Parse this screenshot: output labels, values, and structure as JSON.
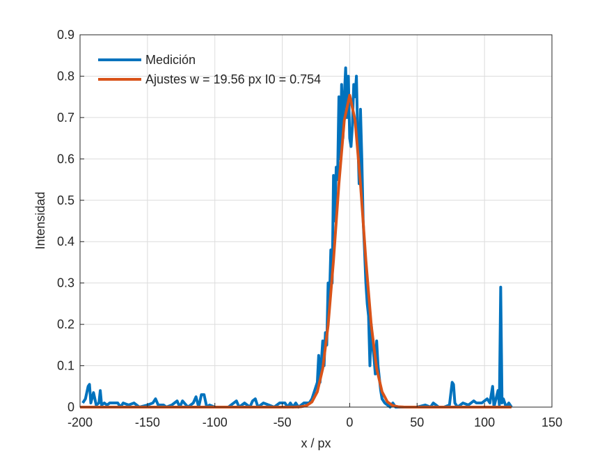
{
  "chart_data": {
    "type": "line",
    "xlabel": "x / px",
    "ylabel": "Intensidad",
    "xlim": [
      -200,
      150
    ],
    "xticks": [
      -200,
      -150,
      -100,
      -50,
      0,
      50,
      100,
      150
    ],
    "ylim": [
      0,
      0.9
    ],
    "yticks": [
      0,
      0.1,
      0.2,
      0.3,
      0.4,
      0.5,
      0.6,
      0.7,
      0.8,
      0.9
    ],
    "grid": true,
    "legend": "northwest",
    "series": [
      {
        "name": "Medición",
        "color": "#0072BD",
        "x": [
          -198,
          -196,
          -194,
          -193,
          -192,
          -190,
          -188,
          -186,
          -185,
          -184,
          -182,
          -180,
          -178,
          -176,
          -172,
          -170,
          -168,
          -164,
          -160,
          -156,
          -150,
          -146,
          -144,
          -142,
          -138,
          -136,
          -132,
          -128,
          -126,
          -124,
          -120,
          -116,
          -114,
          -112,
          -110,
          -108,
          -106,
          -104,
          -100,
          -90,
          -86,
          -84,
          -82,
          -78,
          -74,
          -72,
          -70,
          -68,
          -64,
          -60,
          -56,
          -52,
          -48,
          -46,
          -44,
          -42,
          -40,
          -38,
          -36,
          -34,
          -30,
          -28,
          -26,
          -24,
          -23,
          -22,
          -20,
          -19,
          -18,
          -17,
          -16,
          -15,
          -14,
          -13,
          -12,
          -11,
          -10,
          -9,
          -8,
          -7,
          -6,
          -5,
          -4,
          -3,
          -2,
          -1,
          0,
          1,
          2,
          3,
          4,
          5,
          6,
          7,
          8,
          9,
          10,
          11,
          12,
          13,
          14,
          15,
          16,
          17,
          18,
          19,
          20,
          21,
          22,
          23,
          24,
          26,
          28,
          30,
          32,
          34,
          40,
          50,
          56,
          60,
          62,
          66,
          70,
          74,
          76,
          77,
          78,
          80,
          84,
          88,
          92,
          94,
          98,
          102,
          104,
          106,
          107,
          110,
          111,
          112,
          113,
          114,
          116,
          118,
          120
        ],
        "values": [
          0.01,
          0.02,
          0.05,
          0.055,
          0.01,
          0.035,
          0.005,
          0.01,
          0.04,
          0.005,
          0.01,
          0.005,
          0.01,
          0.01,
          0.01,
          0,
          0.01,
          0.005,
          0.01,
          0,
          0.005,
          0.01,
          0.02,
          0.005,
          0.005,
          0,
          0.005,
          0.015,
          0,
          0.015,
          0,
          0.01,
          0.025,
          0,
          0.03,
          0.03,
          0,
          0.005,
          0,
          0,
          0.01,
          0.015,
          0,
          0.01,
          0,
          0.015,
          0.02,
          0,
          0.01,
          0.005,
          0,
          0.01,
          0.01,
          0,
          0.01,
          0,
          0.01,
          0,
          0.005,
          0.01,
          0.01,
          0.02,
          0.04,
          0.06,
          0.125,
          0.06,
          0.16,
          0.1,
          0.18,
          0.15,
          0.3,
          0.26,
          0.38,
          0.3,
          0.56,
          0.45,
          0.58,
          0.55,
          0.75,
          0.6,
          0.78,
          0.65,
          0.75,
          0.82,
          0.7,
          0.8,
          0.65,
          0.63,
          0.68,
          0.78,
          0.75,
          0.8,
          0.65,
          0.54,
          0.72,
          0.6,
          0.45,
          0.38,
          0.3,
          0.25,
          0.22,
          0.1,
          0.2,
          0.15,
          0.12,
          0.08,
          0.16,
          0.1,
          0.07,
          0.04,
          0.02,
          0.01,
          0.005,
          0,
          0.01,
          0,
          0,
          0,
          0.005,
          0,
          0.01,
          0,
          0,
          0.005,
          0.06,
          0.055,
          0.01,
          0,
          0.01,
          0.005,
          0.015,
          0.01,
          0.01,
          0.02,
          0.01,
          0.05,
          0,
          0.04,
          0.005,
          0.29,
          0.01,
          0.02,
          0,
          0.01,
          0
        ]
      },
      {
        "name": "Ajustes w = 19.56 px I0 = 0.754",
        "color": "#D95319",
        "x": [
          -200,
          -48,
          -40,
          -36,
          -32,
          -28,
          -24,
          -20,
          -16,
          -12,
          -8,
          -4,
          0,
          4,
          8,
          12,
          16,
          20,
          24,
          28,
          32,
          36,
          40,
          48,
          120
        ],
        "values": [
          0,
          0,
          0.0002,
          0.0009,
          0.0036,
          0.0125,
          0.0371,
          0.0932,
          0.1978,
          0.3551,
          0.5396,
          0.6935,
          0.754,
          0.6935,
          0.5396,
          0.3551,
          0.1978,
          0.0932,
          0.0371,
          0.0125,
          0.0036,
          0.0009,
          0.0002,
          0,
          0
        ]
      }
    ]
  }
}
